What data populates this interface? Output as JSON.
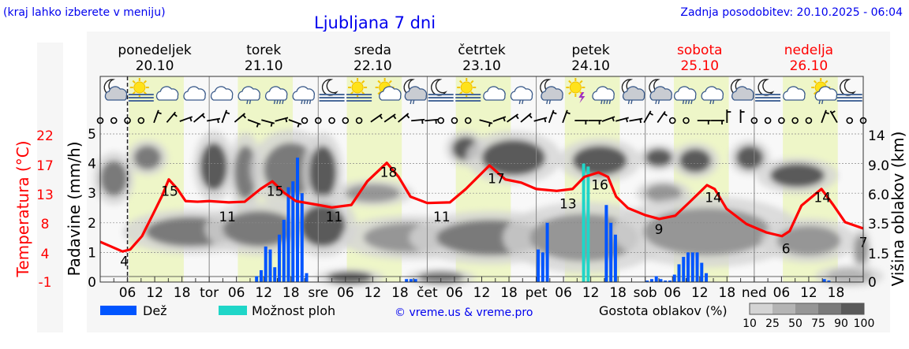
{
  "header": {
    "hint": "(kraj lahko izberete v meniju)",
    "title": "Ljubljana 7 dni",
    "updated": "Zadnja posodobitev: 20.10.2025 - 06:04"
  },
  "days": [
    {
      "name": "ponedeljek",
      "date": "20.10",
      "weekend": false,
      "short": ""
    },
    {
      "name": "torek",
      "date": "21.10",
      "weekend": false,
      "short": "tor"
    },
    {
      "name": "sreda",
      "date": "22.10",
      "weekend": false,
      "short": "sre"
    },
    {
      "name": "četrtek",
      "date": "23.10",
      "weekend": false,
      "short": "čet"
    },
    {
      "name": "petek",
      "date": "24.10",
      "weekend": false,
      "short": "pet"
    },
    {
      "name": "sobota",
      "date": "25.10",
      "weekend": true,
      "short": "sob"
    },
    {
      "name": "nedelja",
      "date": "26.10",
      "weekend": true,
      "short": "ned"
    }
  ],
  "colors": {
    "text_blue": "#0000ee",
    "weekend": "#ff0000",
    "rain": "#0055ff",
    "showers": "#1fd6c8",
    "temperature": "#ff0000",
    "daylight": "#eef6c8",
    "plot_bg": "#f8f8f8"
  },
  "legend": {
    "rain_label": "Dež",
    "showers_label": "Možnost ploh",
    "copyright": "© vreme.us & vreme.pro",
    "cloud_label": "Gostota oblakov (%)",
    "cloud_scale": [
      {
        "label": "10",
        "color": "#d4d4d4"
      },
      {
        "label": "25",
        "color": "#b4b4b4"
      },
      {
        "label": "50",
        "color": "#969696"
      },
      {
        "label": "75",
        "color": "#7a7a7a"
      },
      {
        "label": "90",
        "color": "#5a5a5a"
      },
      {
        "label": "100",
        "color": ""
      }
    ]
  },
  "chart_data": {
    "type": "line",
    "x_unit": "hours from Mon 20.10 00:00",
    "x_range": [
      0,
      168
    ],
    "hour_ticks": [
      "06",
      "12",
      "18"
    ],
    "now_marker_hour": 6,
    "daylight_hours": [
      6.3,
      18.4
    ],
    "axes": {
      "temperature": {
        "label": "Temperatura (°C)",
        "ticks": [
          "22",
          "17",
          "13",
          "8",
          "4",
          "-1"
        ],
        "range": [
          -1,
          22
        ]
      },
      "precipitation": {
        "label": "Padavine (mm/h)",
        "ticks": [
          "0",
          "1",
          "2",
          "3",
          "4",
          "5"
        ],
        "range": [
          0,
          5
        ]
      },
      "cloud_height": {
        "label": "Višina oblakov (km)",
        "ticks": [
          "0",
          "1.5",
          "3.5",
          "6.0",
          "9.0",
          "14"
        ]
      }
    },
    "temperature": {
      "hours": [
        0,
        2.3,
        4.9,
        6.6,
        9.2,
        11.8,
        13.6,
        15.1,
        17,
        18.8,
        21.4,
        24,
        28.3,
        31.8,
        35.3,
        37.9,
        40.5,
        43.1,
        48,
        51,
        55.3,
        58.8,
        63.1,
        65.7,
        68.3,
        72,
        77,
        80.5,
        85.7,
        89.2,
        92.7,
        96,
        100.5,
        104,
        106.6,
        109.7,
        111.8,
        113.6,
        116.2,
        120,
        123.1,
        126.6,
        130,
        133.6,
        135.3,
        137.9,
        142.3,
        146.6,
        150.1,
        151.8,
        154.4,
        158.8,
        161.4,
        164,
        168
      ],
      "values": [
        5.3,
        4.6,
        3.8,
        4.1,
        6.2,
        9.9,
        12.5,
        15.1,
        13.6,
        11.7,
        11.6,
        11.7,
        11.5,
        11.6,
        13.6,
        14.8,
        13,
        11.7,
        11.1,
        10.7,
        11.1,
        14.8,
        17.7,
        15.5,
        12.4,
        11.4,
        11.5,
        13.6,
        17.3,
        15.1,
        14.6,
        13.6,
        13.3,
        13.6,
        15.5,
        16.2,
        15.5,
        12.4,
        10.6,
        9.5,
        8.9,
        9.4,
        11.7,
        14.2,
        13.6,
        10.5,
        8.1,
        6.8,
        6.2,
        7.0,
        11,
        13.6,
        11.1,
        8.4,
        7.4
      ]
    },
    "temperature_labels": [
      {
        "hour": 5.3,
        "value": 4,
        "text": "4"
      },
      {
        "hour": 15.3,
        "value": 15,
        "text": "15"
      },
      {
        "hour": 28,
        "value": 11,
        "text": "11"
      },
      {
        "hour": 38.5,
        "value": 15,
        "text": "15"
      },
      {
        "hour": 51.5,
        "value": 11,
        "text": "11"
      },
      {
        "hour": 63.5,
        "value": 18,
        "text": "18"
      },
      {
        "hour": 75.2,
        "value": 11,
        "text": "11"
      },
      {
        "hour": 87.2,
        "value": 17,
        "text": "17"
      },
      {
        "hour": 103,
        "value": 13,
        "text": "13"
      },
      {
        "hour": 110,
        "value": 16,
        "text": "16"
      },
      {
        "hour": 123,
        "value": 9,
        "text": "9"
      },
      {
        "hour": 135,
        "value": 14,
        "text": "14"
      },
      {
        "hour": 151,
        "value": 6,
        "text": "6"
      },
      {
        "hour": 159,
        "value": 14,
        "text": "14"
      },
      {
        "hour": 168,
        "value": 7,
        "text": "7"
      }
    ],
    "precipitation": [
      {
        "hour": 34,
        "mm": 0.2,
        "type": "rain"
      },
      {
        "hour": 35,
        "mm": 0.4,
        "type": "rain"
      },
      {
        "hour": 36,
        "mm": 1.2,
        "type": "rain"
      },
      {
        "hour": 37,
        "mm": 1.1,
        "type": "rain"
      },
      {
        "hour": 38,
        "mm": 0.5,
        "type": "rain"
      },
      {
        "hour": 39,
        "mm": 1.6,
        "type": "rain"
      },
      {
        "hour": 40,
        "mm": 2.1,
        "type": "rain"
      },
      {
        "hour": 41,
        "mm": 3.2,
        "type": "rain"
      },
      {
        "hour": 42,
        "mm": 3.4,
        "type": "rain"
      },
      {
        "hour": 43,
        "mm": 4.2,
        "type": "rain"
      },
      {
        "hour": 44,
        "mm": 3.0,
        "type": "rain"
      },
      {
        "hour": 45,
        "mm": 0.3,
        "type": "rain"
      },
      {
        "hour": 67,
        "mm": 0.1,
        "type": "rain"
      },
      {
        "hour": 68,
        "mm": 0.1,
        "type": "rain"
      },
      {
        "hour": 69,
        "mm": 0.1,
        "type": "rain"
      },
      {
        "hour": 96,
        "mm": 1.1,
        "type": "rain"
      },
      {
        "hour": 97,
        "mm": 1.0,
        "type": "rain"
      },
      {
        "hour": 98,
        "mm": 2.0,
        "type": "rain"
      },
      {
        "hour": 106,
        "mm": 4.0,
        "type": "showers"
      },
      {
        "hour": 107,
        "mm": 3.9,
        "type": "showers"
      },
      {
        "hour": 111,
        "mm": 2.6,
        "type": "rain"
      },
      {
        "hour": 112,
        "mm": 2.0,
        "type": "rain"
      },
      {
        "hour": 113,
        "mm": 1.6,
        "type": "rain"
      },
      {
        "hour": 120,
        "mm": 0.05,
        "type": "rain"
      },
      {
        "hour": 121,
        "mm": 0.1,
        "type": "rain"
      },
      {
        "hour": 122,
        "mm": 0.2,
        "type": "rain"
      },
      {
        "hour": 123,
        "mm": 0.1,
        "type": "rain"
      },
      {
        "hour": 124,
        "mm": 0.05,
        "type": "rain"
      },
      {
        "hour": 125,
        "mm": 0.05,
        "type": "rain"
      },
      {
        "hour": 126,
        "mm": 0.25,
        "type": "rain"
      },
      {
        "hour": 127,
        "mm": 0.6,
        "type": "rain"
      },
      {
        "hour": 128,
        "mm": 0.85,
        "type": "rain"
      },
      {
        "hour": 129,
        "mm": 1.0,
        "type": "rain"
      },
      {
        "hour": 130,
        "mm": 1.0,
        "type": "rain"
      },
      {
        "hour": 131,
        "mm": 1.0,
        "type": "rain"
      },
      {
        "hour": 132,
        "mm": 0.65,
        "type": "rain"
      },
      {
        "hour": 133,
        "mm": 0.3,
        "type": "rain"
      },
      {
        "hour": 159,
        "mm": 0.1,
        "type": "rain"
      },
      {
        "hour": 160,
        "mm": 0.05,
        "type": "rain"
      }
    ],
    "cloud_cover": [
      {
        "hour": 3,
        "level": 3.5,
        "spread_h": 3,
        "spread_l": 0.6,
        "density": 75
      },
      {
        "hour": 10.4,
        "level": 4.2,
        "spread_h": 3,
        "spread_l": 0.4,
        "density": 75
      },
      {
        "hour": 25,
        "level": 3.9,
        "spread_h": 3,
        "spread_l": 0.8,
        "density": 80
      },
      {
        "hour": 32,
        "level": 3.7,
        "spread_h": 2.5,
        "spread_l": 0.9,
        "density": 75
      },
      {
        "hour": 42,
        "level": 3.8,
        "spread_h": 6,
        "spread_l": 0.9,
        "density": 75
      },
      {
        "hour": 49,
        "level": 3.7,
        "spread_h": 3,
        "spread_l": 0.9,
        "density": 80
      },
      {
        "hour": 20,
        "level": 1.7,
        "spread_h": 10,
        "spread_l": 0.5,
        "density": 75
      },
      {
        "hour": 35,
        "level": 1.8,
        "spread_h": 8,
        "spread_l": 0.6,
        "density": 75
      },
      {
        "hour": 49,
        "level": 1.9,
        "spread_h": 5,
        "spread_l": 0.7,
        "density": 90
      },
      {
        "hour": 55,
        "level": 0.15,
        "spread_h": 5,
        "spread_l": 0.2,
        "density": 90
      },
      {
        "hour": 60,
        "level": 3.0,
        "spread_h": 6,
        "spread_l": 0.3,
        "density": 50
      },
      {
        "hour": 68,
        "level": 1.5,
        "spread_h": 10,
        "spread_l": 0.5,
        "density": 50
      },
      {
        "hour": 86,
        "level": 1.5,
        "spread_h": 12,
        "spread_l": 0.6,
        "density": 75
      },
      {
        "hour": 80.5,
        "level": 4.5,
        "spread_h": 3,
        "spread_l": 0.4,
        "density": 90
      },
      {
        "hour": 91,
        "level": 4.2,
        "spread_h": 7,
        "spread_l": 0.6,
        "density": 100
      },
      {
        "hour": 75,
        "level": 0.15,
        "spread_h": 5,
        "spread_l": 0.2,
        "density": 75
      },
      {
        "hour": 110,
        "level": 4.1,
        "spread_h": 6,
        "spread_l": 0.5,
        "density": 100
      },
      {
        "hour": 106.6,
        "level": 1.5,
        "spread_h": 12,
        "spread_l": 0.8,
        "density": 50
      },
      {
        "hour": 123,
        "level": 4.2,
        "spread_h": 3,
        "spread_l": 0.3,
        "density": 90
      },
      {
        "hour": 131,
        "level": 4.1,
        "spread_h": 3.5,
        "spread_l": 0.4,
        "density": 90
      },
      {
        "hour": 124,
        "level": 3.0,
        "spread_h": 4,
        "spread_l": 0.3,
        "density": 50
      },
      {
        "hour": 133.6,
        "level": 1.7,
        "spread_h": 14,
        "spread_l": 0.8,
        "density": 50
      },
      {
        "hour": 143,
        "level": 4.2,
        "spread_h": 3,
        "spread_l": 0.4,
        "density": 90
      },
      {
        "hour": 153.5,
        "level": 3.6,
        "spread_h": 6,
        "spread_l": 0.4,
        "density": 100
      },
      {
        "hour": 156,
        "level": 1.4,
        "spread_h": 7,
        "spread_l": 0.5,
        "density": 50
      },
      {
        "hour": 165,
        "level": 0.2,
        "spread_h": 5,
        "spread_l": 0.25,
        "density": 25
      },
      {
        "hour": 167.5,
        "level": 1.1,
        "spread_h": 1.5,
        "spread_l": 0.5,
        "density": 50
      }
    ],
    "weather_icons": [
      "moon-cloud",
      "sun-fog",
      "cloud",
      "cloud",
      "cloud",
      "cloud-light-rain",
      "cloud-rain",
      "cloud-rain",
      "moon-fog",
      "sun-fog",
      "sun-cloud",
      "moon-cloud-light-rain",
      "moon-fog",
      "sun-fog",
      "cloud",
      "cloud-light-rain",
      "moon-cloud-light-rain",
      "sun-thunder",
      "cloud-rain",
      "moon-cloud-light-rain",
      "moon-cloud-light-rain",
      "cloud-rain",
      "cloud-light-rain",
      "moon-cloud",
      "moon-fog",
      "cloud",
      "sun-cloud-light-rain",
      "moon-fog"
    ],
    "wind_3h": [
      "calm",
      "calm",
      "calm",
      "calm",
      200,
      220,
      250,
      230,
      260,
      200,
      230,
      290,
      285,
      255,
      290,
      "calm",
      "calm",
      "calm",
      "calm",
      "calm",
      235,
      235,
      230,
      265,
      265,
      "calm",
      "calm",
      "calm",
      285,
      250,
      235,
      230,
      255,
      200,
      200,
      270,
      270,
      250,
      255,
      260,
      210,
      215,
      "calm",
      "calm",
      270,
      270,
      180,
      180,
      "calm",
      "calm",
      "calm",
      "calm",
      "calm",
      200,
      150,
      "calm",
      "calm"
    ]
  }
}
